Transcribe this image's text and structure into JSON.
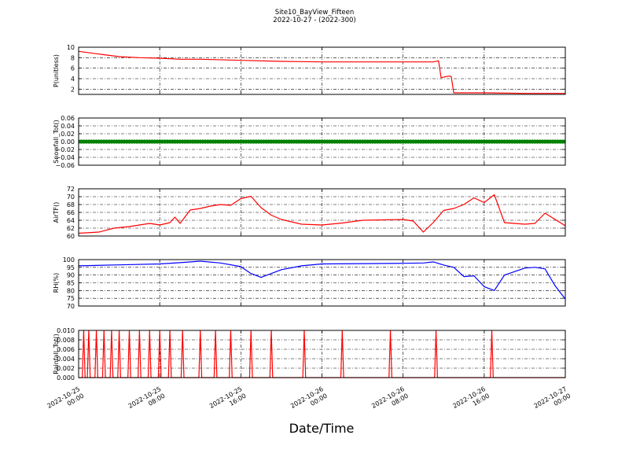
{
  "figure": {
    "title_line1": "Site10_BayView_Fifteen",
    "title_line2": "2022-10-27 - (2022-300)",
    "xlabel": "Date/Time",
    "x_ticks": [
      {
        "value": "2022-10-25 00:00",
        "line1": "2022-10-25",
        "line2": "00:00"
      },
      {
        "value": "2022-10-25 08:00",
        "line1": "2022-10-25",
        "line2": "08:00"
      },
      {
        "value": "2022-10-25 16:00",
        "line1": "2022-10-25",
        "line2": "16:00"
      },
      {
        "value": "2022-10-26 00:00",
        "line1": "2022-10-26",
        "line2": "00:00"
      },
      {
        "value": "2022-10-26 08:00",
        "line1": "2022-10-26",
        "line2": "08:00"
      },
      {
        "value": "2022-10-26 16:00",
        "line1": "2022-10-26",
        "line2": "16:00"
      },
      {
        "value": "2022-10-27 00:00",
        "line1": "2022-10-27",
        "line2": "00:00"
      }
    ],
    "x_range": [
      "2022-10-25 00:00",
      "2022-10-27 00:00"
    ]
  },
  "chart_data": [
    {
      "type": "line",
      "ylabel": "P(unitless)",
      "ylim": [
        1,
        10
      ],
      "yticks": [
        2,
        4,
        6,
        8,
        10
      ],
      "tick_labels": [
        "2",
        "4",
        "6",
        "8",
        "10"
      ],
      "grid": true,
      "color": "#ff0000",
      "x": [
        "2022-10-25 00:00",
        "2022-10-25 02:00",
        "2022-10-25 04:00",
        "2022-10-25 06:00",
        "2022-10-25 08:00",
        "2022-10-25 10:00",
        "2022-10-25 12:00",
        "2022-10-25 16:00",
        "2022-10-25 20:00",
        "2022-10-26 00:00",
        "2022-10-26 04:00",
        "2022-10-26 08:00",
        "2022-10-26 10:00",
        "2022-10-26 11:00",
        "2022-10-26 11:30",
        "2022-10-26 11:45",
        "2022-10-26 12:30",
        "2022-10-26 12:45",
        "2022-10-26 13:00",
        "2022-10-26 13:15",
        "2022-10-26 16:00",
        "2022-10-26 20:00",
        "2022-10-27 00:00"
      ],
      "y": [
        9.2,
        8.7,
        8.2,
        8.0,
        7.9,
        7.7,
        7.7,
        7.5,
        7.3,
        7.2,
        7.2,
        7.2,
        7.2,
        7.2,
        7.4,
        4.2,
        4.5,
        4.4,
        1.3,
        1.3,
        1.3,
        1.2,
        1.2
      ]
    },
    {
      "type": "scatter",
      "ylabel": "Snowfall_Tot()",
      "ylim": [
        -0.06,
        0.06
      ],
      "yticks": [
        -0.06,
        -0.04,
        -0.02,
        0.0,
        0.02,
        0.04,
        0.06
      ],
      "tick_labels": [
        "−0.06",
        "−0.04",
        "−0.02",
        "0.00",
        "0.02",
        "0.04",
        "0.06"
      ],
      "grid": true,
      "color": "#008000",
      "x_range": [
        "2022-10-25 00:00",
        "2022-10-27 00:00"
      ],
      "interval_minutes": 15,
      "value": 0.0
    },
    {
      "type": "line",
      "ylabel": "AirTF()",
      "ylim": [
        60,
        72
      ],
      "yticks": [
        60,
        62,
        64,
        66,
        68,
        70,
        72
      ],
      "tick_labels": [
        "60",
        "62",
        "64",
        "66",
        "68",
        "70",
        "72"
      ],
      "grid": true,
      "color": "#ff0000",
      "x": [
        "2022-10-25 00:00",
        "2022-10-25 02:00",
        "2022-10-25 03:30",
        "2022-10-25 05:00",
        "2022-10-25 07:00",
        "2022-10-25 08:00",
        "2022-10-25 09:00",
        "2022-10-25 09:30",
        "2022-10-25 10:00",
        "2022-10-25 11:00",
        "2022-10-25 12:00",
        "2022-10-25 13:00",
        "2022-10-25 14:00",
        "2022-10-25 15:00",
        "2022-10-25 16:00",
        "2022-10-25 17:00",
        "2022-10-25 18:00",
        "2022-10-25 19:00",
        "2022-10-25 20:00",
        "2022-10-25 22:00",
        "2022-10-26 00:00",
        "2022-10-26 02:00",
        "2022-10-26 04:00",
        "2022-10-26 06:00",
        "2022-10-26 08:00",
        "2022-10-26 09:00",
        "2022-10-26 10:00",
        "2022-10-26 11:00",
        "2022-10-26 12:00",
        "2022-10-26 13:00",
        "2022-10-26 14:00",
        "2022-10-26 15:00",
        "2022-10-26 16:00",
        "2022-10-26 17:00",
        "2022-10-26 18:00",
        "2022-10-26 20:00",
        "2022-10-26 21:00",
        "2022-10-26 22:00",
        "2022-10-27 00:00"
      ],
      "y": [
        60.7,
        61.0,
        62.0,
        62.4,
        63.2,
        62.8,
        63.4,
        64.8,
        63.2,
        66.6,
        67.0,
        67.6,
        68.0,
        67.8,
        69.5,
        70.1,
        67.2,
        65.3,
        64.2,
        63.0,
        62.8,
        63.3,
        64.0,
        64.1,
        64.2,
        63.8,
        61.0,
        63.5,
        66.5,
        67.0,
        68.0,
        69.7,
        68.5,
        70.5,
        63.4,
        63.0,
        63.2,
        65.8,
        62.6
      ]
    },
    {
      "type": "line",
      "ylabel": "RH(%)",
      "ylim": [
        70,
        100
      ],
      "yticks": [
        70,
        75,
        80,
        85,
        90,
        95,
        100
      ],
      "tick_labels": [
        "70",
        "75",
        "80",
        "85",
        "90",
        "95",
        "100"
      ],
      "grid": true,
      "color": "#0000ff",
      "x": [
        "2022-10-25 00:00",
        "2022-10-25 04:00",
        "2022-10-25 08:00",
        "2022-10-25 10:00",
        "2022-10-25 12:00",
        "2022-10-25 14:00",
        "2022-10-25 16:00",
        "2022-10-25 17:00",
        "2022-10-25 18:00",
        "2022-10-25 20:00",
        "2022-10-25 22:00",
        "2022-10-26 00:00",
        "2022-10-26 04:00",
        "2022-10-26 08:00",
        "2022-10-26 10:00",
        "2022-10-26 11:00",
        "2022-10-26 12:00",
        "2022-10-26 13:00",
        "2022-10-26 14:00",
        "2022-10-26 15:00",
        "2022-10-26 16:00",
        "2022-10-26 17:00",
        "2022-10-26 18:00",
        "2022-10-26 20:00",
        "2022-10-26 21:00",
        "2022-10-26 22:00",
        "2022-10-26 23:00",
        "2022-10-27 00:00"
      ],
      "y": [
        96.0,
        96.6,
        97.2,
        98.0,
        99.0,
        97.8,
        95.5,
        91.0,
        88.5,
        93.5,
        96.0,
        97.2,
        97.4,
        97.6,
        97.8,
        98.5,
        96.5,
        95.0,
        89.0,
        89.5,
        82.5,
        80.0,
        90.0,
        94.5,
        95.0,
        94.0,
        83.0,
        74.5
      ]
    },
    {
      "type": "line",
      "ylabel": "Rainfall_Tot()",
      "ylim": [
        0,
        0.01
      ],
      "yticks": [
        0,
        0.002,
        0.004,
        0.006,
        0.008,
        0.01
      ],
      "tick_labels": [
        "0.000",
        "0.002",
        "0.004",
        "0.006",
        "0.008",
        "0.010"
      ],
      "grid": true,
      "color": "#ff0000",
      "baseline": 0.0,
      "spike_value": 0.01,
      "spike_times": [
        "2022-10-25 00:30",
        "2022-10-25 01:00",
        "2022-10-25 01:45",
        "2022-10-25 02:30",
        "2022-10-25 03:15",
        "2022-10-25 04:00",
        "2022-10-25 05:00",
        "2022-10-25 06:00",
        "2022-10-25 07:00",
        "2022-10-25 08:00",
        "2022-10-25 09:00",
        "2022-10-25 10:15",
        "2022-10-25 12:00",
        "2022-10-25 13:30",
        "2022-10-25 15:00",
        "2022-10-25 17:00",
        "2022-10-25 19:00",
        "2022-10-25 22:15",
        "2022-10-26 02:00",
        "2022-10-26 06:45",
        "2022-10-26 11:15",
        "2022-10-26 16:45"
      ]
    }
  ]
}
